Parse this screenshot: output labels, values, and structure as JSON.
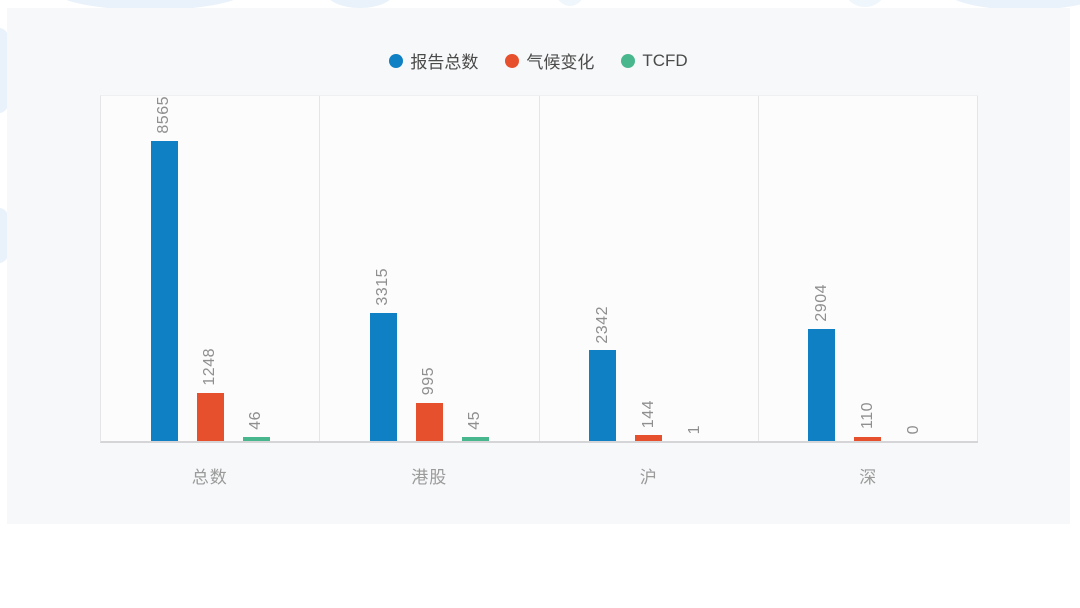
{
  "chart_data": {
    "type": "bar",
    "categories": [
      "总数",
      "港股",
      "沪",
      "深"
    ],
    "series": [
      {
        "name": "报告总数",
        "color": "#0e80c3",
        "values": [
          8565,
          3315,
          2342,
          2904
        ]
      },
      {
        "name": "气候变化",
        "color": "#e6502d",
        "values": [
          1248,
          995,
          144,
          110
        ]
      },
      {
        "name": "TCFD",
        "color": "#49b78e",
        "values": [
          46,
          45,
          1,
          0
        ]
      }
    ],
    "title": "",
    "xlabel": "",
    "ylabel": "",
    "ylim": [
      0,
      9000
    ],
    "legend_position": "top",
    "value_labels": "rotated 90°, gray, above bars",
    "grid": "vertical separators between category groups, bottom baseline"
  }
}
